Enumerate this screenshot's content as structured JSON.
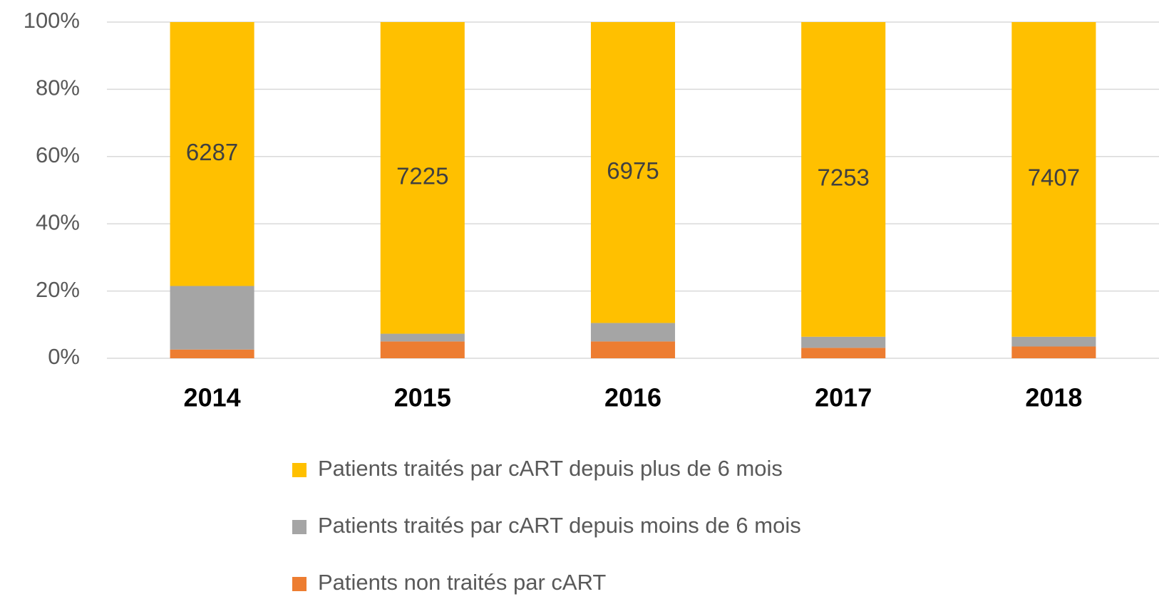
{
  "chart_data": {
    "type": "stacked_bar",
    "categories": [
      "2014",
      "2015",
      "2016",
      "2017",
      "2018"
    ],
    "series": [
      {
        "name": "Patients non traités par cART",
        "color": "#ED7D31",
        "values": [
          2.6,
          5.0,
          5.0,
          3.1,
          3.5
        ]
      },
      {
        "name": "Patients traités par cART depuis moins de 6 mois",
        "color": "#A5A5A5",
        "values": [
          18.9,
          2.3,
          5.5,
          3.3,
          2.9
        ]
      },
      {
        "name": "Patients traités par cART depuis plus de 6 mois",
        "color": "#FFC000",
        "values": [
          78.5,
          92.7,
          89.5,
          93.6,
          93.6
        ]
      }
    ],
    "annotations": [
      "6287",
      "7225",
      "6975",
      "7253",
      "7407"
    ],
    "ylim": [
      0,
      100
    ],
    "yticks": [
      {
        "value": 0,
        "label": "0%"
      },
      {
        "value": 20,
        "label": "20%"
      },
      {
        "value": 40,
        "label": "40%"
      },
      {
        "value": 60,
        "label": "60%"
      },
      {
        "value": 80,
        "label": "80%"
      },
      {
        "value": 100,
        "label": "100%"
      }
    ],
    "grid": true,
    "legend": "bottom"
  }
}
